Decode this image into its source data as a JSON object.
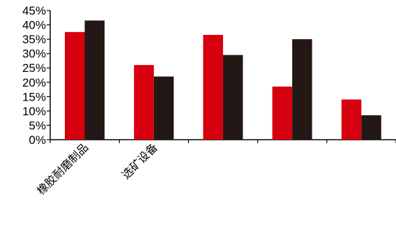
{
  "chart_data": {
    "type": "bar",
    "categories": [
      "橡胶耐磨制品",
      "选矿设备",
      "",
      "",
      ""
    ],
    "series": [
      {
        "values": [
          37.5,
          26.0,
          36.5,
          18.5,
          14.0
        ],
        "color": "#d7000f"
      },
      {
        "values": [
          41.5,
          22.0,
          29.5,
          35.0,
          8.5
        ],
        "color": "#231815"
      }
    ],
    "ylim": [
      0,
      45
    ],
    "yticks": [
      "0%",
      "5%",
      "10%",
      "15%",
      "20%",
      "25%",
      "30%",
      "35%",
      "40%",
      "45%"
    ],
    "ytick_values": [
      0,
      5,
      10,
      15,
      20,
      25,
      30,
      35,
      40,
      45
    ],
    "grid": false,
    "legend": "none",
    "title": "",
    "xlabel": "",
    "ylabel": ""
  }
}
